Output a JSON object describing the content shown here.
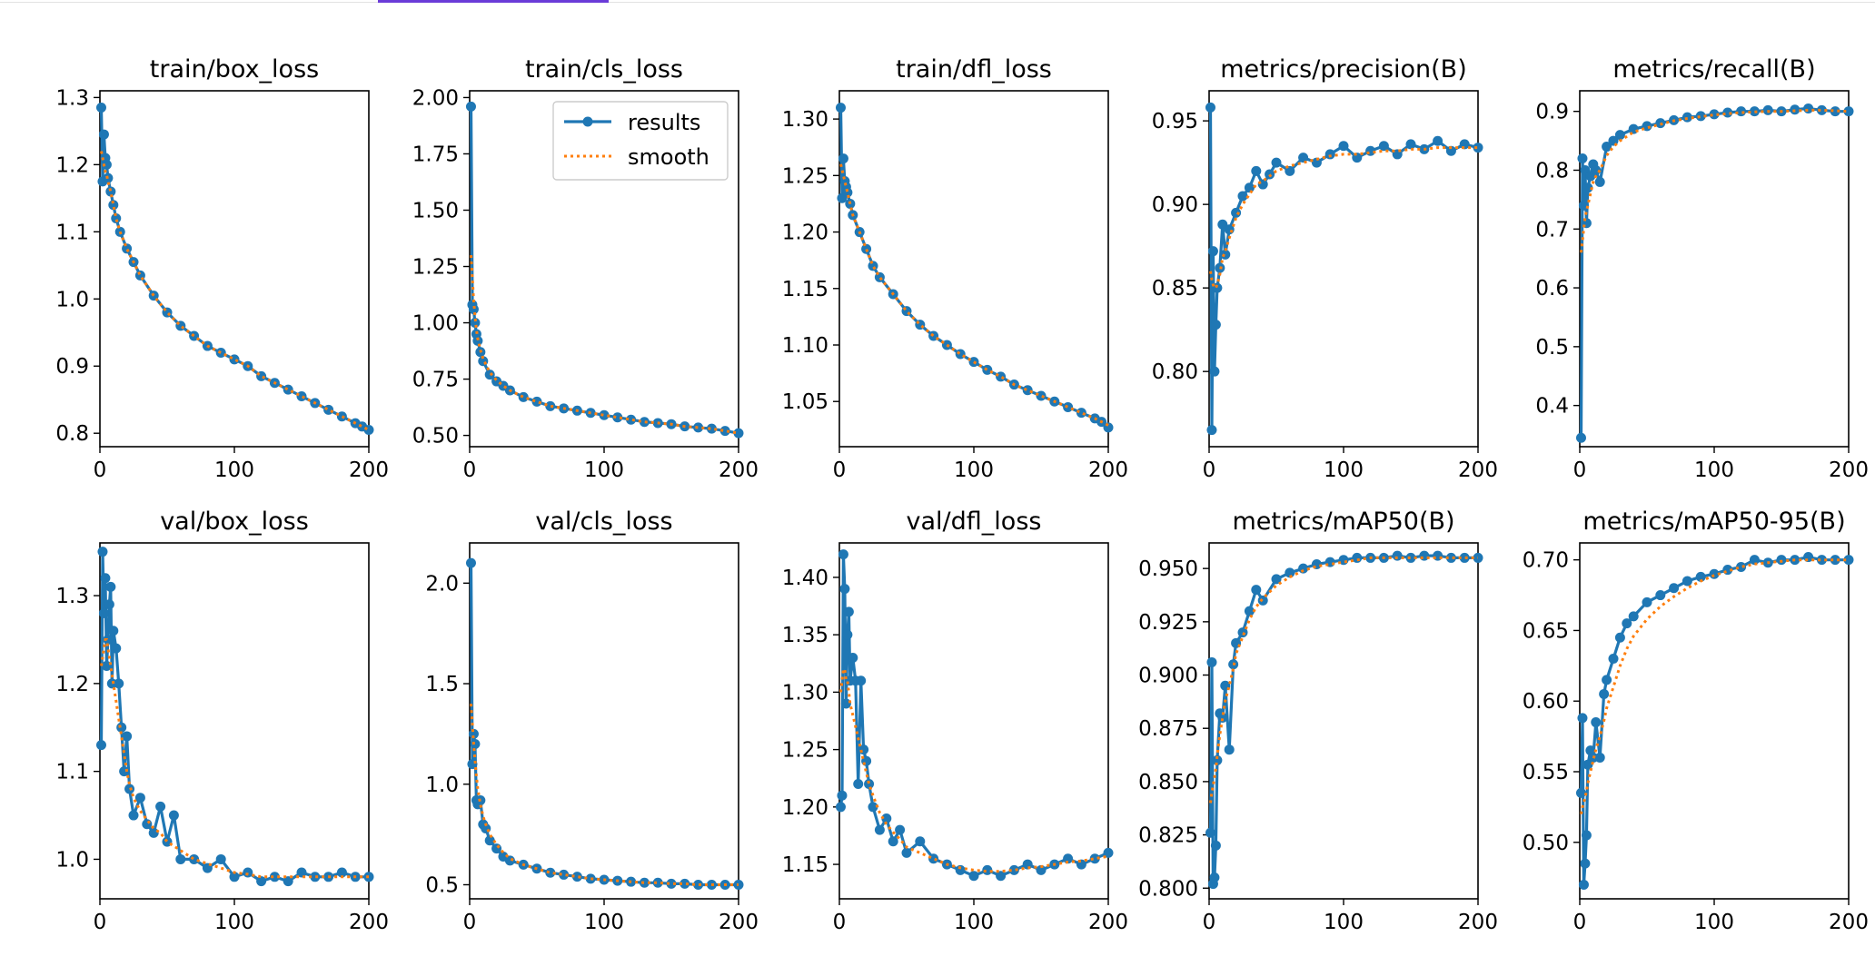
{
  "colors": {
    "results": "#1f77b4",
    "smooth": "#ff7f0e",
    "tab_accent": "#6a3bd8"
  },
  "legend": {
    "results_label": "results",
    "smooth_label": "smooth"
  },
  "chart_data": [
    {
      "type": "line",
      "title": "train/box_loss",
      "xlabel": "",
      "ylabel": "",
      "xlim": [
        0,
        200
      ],
      "ylim": [
        0.78,
        1.31
      ],
      "xticks": [
        0,
        100,
        200
      ],
      "yticks": [
        0.8,
        0.9,
        1.0,
        1.1,
        1.2,
        1.3
      ],
      "ytick_labels": [
        "0.8",
        "0.9",
        "1.0",
        "1.1",
        "1.2",
        "1.3"
      ],
      "grid": false,
      "legend": false,
      "x": [
        1,
        2,
        3,
        4,
        5,
        6,
        8,
        10,
        12,
        15,
        20,
        25,
        30,
        40,
        50,
        60,
        70,
        80,
        90,
        100,
        110,
        120,
        130,
        140,
        150,
        160,
        170,
        180,
        190,
        195,
        200
      ],
      "y": [
        1.285,
        1.175,
        1.245,
        1.21,
        1.2,
        1.18,
        1.16,
        1.14,
        1.12,
        1.1,
        1.075,
        1.055,
        1.035,
        1.005,
        0.98,
        0.96,
        0.945,
        0.93,
        0.92,
        0.91,
        0.9,
        0.885,
        0.875,
        0.865,
        0.855,
        0.845,
        0.835,
        0.825,
        0.815,
        0.81,
        0.805
      ],
      "smooth": [
        1.22,
        1.21,
        1.2,
        1.19,
        1.185,
        1.175,
        1.16,
        1.14,
        1.12,
        1.1,
        1.075,
        1.055,
        1.035,
        1.005,
        0.98,
        0.96,
        0.945,
        0.93,
        0.92,
        0.91,
        0.9,
        0.885,
        0.875,
        0.865,
        0.855,
        0.845,
        0.835,
        0.825,
        0.815,
        0.81,
        0.805
      ]
    },
    {
      "type": "line",
      "title": "train/cls_loss",
      "xlabel": "",
      "ylabel": "",
      "xlim": [
        0,
        200
      ],
      "ylim": [
        0.45,
        2.03
      ],
      "xticks": [
        0,
        100,
        200
      ],
      "yticks": [
        0.5,
        0.75,
        1.0,
        1.25,
        1.5,
        1.75,
        2.0
      ],
      "ytick_labels": [
        "0.50",
        "0.75",
        "1.00",
        "1.25",
        "1.50",
        "1.75",
        "2.00"
      ],
      "grid": false,
      "legend": true,
      "legend_loc": "upper right",
      "x": [
        1,
        2,
        3,
        4,
        5,
        6,
        8,
        10,
        15,
        20,
        25,
        30,
        40,
        50,
        60,
        70,
        80,
        90,
        100,
        110,
        120,
        130,
        140,
        150,
        160,
        170,
        180,
        190,
        200
      ],
      "y": [
        1.96,
        1.08,
        1.06,
        1.0,
        0.95,
        0.92,
        0.87,
        0.83,
        0.77,
        0.74,
        0.72,
        0.7,
        0.67,
        0.65,
        0.63,
        0.62,
        0.61,
        0.6,
        0.59,
        0.58,
        0.57,
        0.56,
        0.555,
        0.55,
        0.54,
        0.535,
        0.53,
        0.52,
        0.51
      ],
      "smooth": [
        1.3,
        1.2,
        1.1,
        1.03,
        0.97,
        0.93,
        0.88,
        0.84,
        0.78,
        0.745,
        0.72,
        0.7,
        0.67,
        0.65,
        0.63,
        0.62,
        0.61,
        0.6,
        0.59,
        0.58,
        0.57,
        0.56,
        0.555,
        0.55,
        0.54,
        0.535,
        0.53,
        0.52,
        0.51
      ]
    },
    {
      "type": "line",
      "title": "train/dfl_loss",
      "xlabel": "",
      "ylabel": "",
      "xlim": [
        0,
        200
      ],
      "ylim": [
        1.01,
        1.325
      ],
      "xticks": [
        0,
        100,
        200
      ],
      "yticks": [
        1.05,
        1.1,
        1.15,
        1.2,
        1.25,
        1.3
      ],
      "ytick_labels": [
        "1.05",
        "1.10",
        "1.15",
        "1.20",
        "1.25",
        "1.30"
      ],
      "grid": false,
      "legend": false,
      "x": [
        1,
        2,
        3,
        4,
        5,
        6,
        8,
        10,
        15,
        20,
        25,
        30,
        40,
        50,
        60,
        70,
        80,
        90,
        100,
        110,
        120,
        130,
        140,
        150,
        160,
        170,
        180,
        190,
        195,
        200
      ],
      "y": [
        1.31,
        1.23,
        1.265,
        1.245,
        1.24,
        1.235,
        1.225,
        1.215,
        1.2,
        1.185,
        1.17,
        1.16,
        1.145,
        1.13,
        1.118,
        1.108,
        1.1,
        1.092,
        1.085,
        1.078,
        1.072,
        1.065,
        1.06,
        1.055,
        1.05,
        1.045,
        1.04,
        1.035,
        1.032,
        1.027
      ],
      "smooth": [
        1.26,
        1.255,
        1.25,
        1.245,
        1.24,
        1.235,
        1.225,
        1.215,
        1.2,
        1.185,
        1.17,
        1.16,
        1.145,
        1.13,
        1.118,
        1.108,
        1.1,
        1.092,
        1.085,
        1.078,
        1.072,
        1.065,
        1.06,
        1.055,
        1.05,
        1.045,
        1.04,
        1.035,
        1.032,
        1.029
      ]
    },
    {
      "type": "line",
      "title": "metrics/precision(B)",
      "xlabel": "",
      "ylabel": "",
      "xlim": [
        0,
        200
      ],
      "ylim": [
        0.755,
        0.968
      ],
      "xticks": [
        0,
        100,
        200
      ],
      "yticks": [
        0.8,
        0.85,
        0.9,
        0.95
      ],
      "ytick_labels": [
        "0.80",
        "0.85",
        "0.90",
        "0.95"
      ],
      "grid": false,
      "legend": false,
      "x": [
        1,
        2,
        3,
        4,
        5,
        6,
        8,
        10,
        12,
        15,
        20,
        25,
        30,
        35,
        40,
        45,
        50,
        60,
        70,
        80,
        90,
        100,
        110,
        120,
        130,
        140,
        150,
        160,
        170,
        180,
        190,
        200
      ],
      "y": [
        0.958,
        0.765,
        0.872,
        0.8,
        0.828,
        0.85,
        0.862,
        0.888,
        0.87,
        0.885,
        0.895,
        0.905,
        0.91,
        0.92,
        0.912,
        0.918,
        0.925,
        0.92,
        0.928,
        0.925,
        0.93,
        0.935,
        0.928,
        0.932,
        0.935,
        0.93,
        0.936,
        0.933,
        0.938,
        0.932,
        0.936,
        0.934
      ],
      "smooth": [
        0.86,
        0.855,
        0.852,
        0.85,
        0.85,
        0.852,
        0.858,
        0.868,
        0.872,
        0.88,
        0.892,
        0.9,
        0.906,
        0.912,
        0.914,
        0.917,
        0.92,
        0.923,
        0.925,
        0.927,
        0.929,
        0.93,
        0.93,
        0.931,
        0.932,
        0.932,
        0.933,
        0.933,
        0.934,
        0.934,
        0.934,
        0.934
      ]
    },
    {
      "type": "line",
      "title": "metrics/recall(B)",
      "xlabel": "",
      "ylabel": "",
      "xlim": [
        0,
        200
      ],
      "ylim": [
        0.33,
        0.935
      ],
      "xticks": [
        0,
        100,
        200
      ],
      "yticks": [
        0.4,
        0.5,
        0.6,
        0.7,
        0.8,
        0.9
      ],
      "ytick_labels": [
        "0.4",
        "0.5",
        "0.6",
        "0.7",
        "0.8",
        "0.9"
      ],
      "grid": false,
      "legend": false,
      "x": [
        1,
        2,
        3,
        4,
        5,
        6,
        8,
        10,
        12,
        15,
        20,
        25,
        30,
        40,
        50,
        60,
        70,
        80,
        90,
        100,
        110,
        120,
        130,
        140,
        150,
        160,
        170,
        180,
        190,
        200
      ],
      "y": [
        0.345,
        0.82,
        0.74,
        0.8,
        0.71,
        0.77,
        0.79,
        0.81,
        0.8,
        0.78,
        0.84,
        0.85,
        0.86,
        0.87,
        0.875,
        0.88,
        0.885,
        0.89,
        0.892,
        0.895,
        0.898,
        0.9,
        0.9,
        0.902,
        0.9,
        0.903,
        0.905,
        0.902,
        0.9,
        0.9
      ],
      "smooth": [
        0.66,
        0.68,
        0.7,
        0.72,
        0.73,
        0.74,
        0.76,
        0.78,
        0.79,
        0.8,
        0.825,
        0.84,
        0.85,
        0.865,
        0.872,
        0.878,
        0.884,
        0.888,
        0.891,
        0.894,
        0.896,
        0.898,
        0.899,
        0.9,
        0.9,
        0.901,
        0.902,
        0.902,
        0.901,
        0.9
      ]
    },
    {
      "type": "line",
      "title": "val/box_loss",
      "xlabel": "",
      "ylabel": "",
      "xlim": [
        0,
        200
      ],
      "ylim": [
        0.955,
        1.36
      ],
      "xticks": [
        0,
        100,
        200
      ],
      "yticks": [
        1.0,
        1.1,
        1.2,
        1.3
      ],
      "ytick_labels": [
        "1.0",
        "1.1",
        "1.2",
        "1.3"
      ],
      "grid": false,
      "legend": false,
      "x": [
        1,
        2,
        3,
        4,
        5,
        6,
        7,
        8,
        9,
        10,
        12,
        14,
        16,
        18,
        20,
        22,
        25,
        30,
        35,
        40,
        45,
        50,
        55,
        60,
        70,
        80,
        90,
        100,
        110,
        120,
        130,
        140,
        150,
        160,
        170,
        180,
        190,
        200
      ],
      "y": [
        1.13,
        1.35,
        1.28,
        1.32,
        1.22,
        1.25,
        1.29,
        1.31,
        1.2,
        1.26,
        1.24,
        1.2,
        1.15,
        1.1,
        1.14,
        1.08,
        1.05,
        1.07,
        1.04,
        1.03,
        1.06,
        1.02,
        1.05,
        1.0,
        1.0,
        0.99,
        1.0,
        0.98,
        0.985,
        0.975,
        0.98,
        0.975,
        0.985,
        0.98,
        0.98,
        0.985,
        0.98,
        0.98
      ],
      "smooth": [
        1.22,
        1.23,
        1.24,
        1.25,
        1.25,
        1.24,
        1.23,
        1.22,
        1.21,
        1.2,
        1.18,
        1.16,
        1.14,
        1.12,
        1.1,
        1.085,
        1.07,
        1.055,
        1.045,
        1.035,
        1.03,
        1.02,
        1.015,
        1.01,
        1.0,
        0.995,
        0.99,
        0.985,
        0.983,
        0.98,
        0.98,
        0.98,
        0.98,
        0.98,
        0.98,
        0.98,
        0.98,
        0.98
      ]
    },
    {
      "type": "line",
      "title": "val/cls_loss",
      "xlabel": "",
      "ylabel": "",
      "xlim": [
        0,
        200
      ],
      "ylim": [
        0.43,
        2.2
      ],
      "xticks": [
        0,
        100,
        200
      ],
      "yticks": [
        0.5,
        1.0,
        1.5,
        2.0
      ],
      "ytick_labels": [
        "0.5",
        "1.0",
        "1.5",
        "2.0"
      ],
      "grid": false,
      "legend": false,
      "x": [
        1,
        2,
        3,
        4,
        5,
        6,
        8,
        10,
        12,
        15,
        20,
        25,
        30,
        40,
        50,
        60,
        70,
        80,
        90,
        100,
        110,
        120,
        130,
        140,
        150,
        160,
        170,
        180,
        190,
        200
      ],
      "y": [
        2.1,
        1.1,
        1.25,
        1.2,
        0.92,
        0.9,
        0.92,
        0.8,
        0.78,
        0.72,
        0.68,
        0.64,
        0.62,
        0.6,
        0.58,
        0.56,
        0.55,
        0.54,
        0.53,
        0.525,
        0.52,
        0.515,
        0.51,
        0.51,
        0.505,
        0.505,
        0.5,
        0.5,
        0.5,
        0.5
      ],
      "smooth": [
        1.4,
        1.3,
        1.2,
        1.12,
        1.04,
        0.98,
        0.9,
        0.84,
        0.8,
        0.75,
        0.7,
        0.66,
        0.63,
        0.6,
        0.58,
        0.56,
        0.55,
        0.54,
        0.53,
        0.525,
        0.52,
        0.515,
        0.51,
        0.51,
        0.505,
        0.505,
        0.5,
        0.5,
        0.5,
        0.5
      ]
    },
    {
      "type": "line",
      "title": "val/dfl_loss",
      "xlabel": "",
      "ylabel": "",
      "xlim": [
        0,
        200
      ],
      "ylim": [
        1.12,
        1.43
      ],
      "xticks": [
        0,
        100,
        200
      ],
      "yticks": [
        1.15,
        1.2,
        1.25,
        1.3,
        1.35,
        1.4
      ],
      "ytick_labels": [
        "1.15",
        "1.20",
        "1.25",
        "1.30",
        "1.35",
        "1.40"
      ],
      "grid": false,
      "legend": false,
      "x": [
        1,
        2,
        3,
        4,
        5,
        6,
        7,
        8,
        10,
        12,
        14,
        16,
        18,
        20,
        22,
        25,
        30,
        35,
        40,
        45,
        50,
        60,
        70,
        80,
        90,
        100,
        110,
        120,
        130,
        140,
        150,
        160,
        170,
        180,
        190,
        200
      ],
      "y": [
        1.2,
        1.21,
        1.42,
        1.39,
        1.29,
        1.35,
        1.37,
        1.31,
        1.33,
        1.31,
        1.22,
        1.31,
        1.25,
        1.24,
        1.22,
        1.2,
        1.18,
        1.19,
        1.17,
        1.18,
        1.16,
        1.17,
        1.155,
        1.15,
        1.145,
        1.14,
        1.145,
        1.14,
        1.145,
        1.15,
        1.145,
        1.15,
        1.155,
        1.15,
        1.155,
        1.16
      ],
      "smooth": [
        1.3,
        1.31,
        1.32,
        1.32,
        1.31,
        1.31,
        1.3,
        1.29,
        1.28,
        1.27,
        1.26,
        1.25,
        1.24,
        1.23,
        1.22,
        1.21,
        1.195,
        1.185,
        1.178,
        1.172,
        1.165,
        1.16,
        1.155,
        1.15,
        1.147,
        1.145,
        1.144,
        1.144,
        1.145,
        1.147,
        1.148,
        1.15,
        1.152,
        1.153,
        1.155,
        1.157
      ]
    },
    {
      "type": "line",
      "title": "metrics/mAP50(B)",
      "xlabel": "",
      "ylabel": "",
      "xlim": [
        0,
        200
      ],
      "ylim": [
        0.795,
        0.962
      ],
      "xticks": [
        0,
        100,
        200
      ],
      "yticks": [
        0.8,
        0.825,
        0.85,
        0.875,
        0.9,
        0.925,
        0.95
      ],
      "ytick_labels": [
        "0.800",
        "0.825",
        "0.850",
        "0.875",
        "0.900",
        "0.925",
        "0.950"
      ],
      "grid": false,
      "legend": false,
      "x": [
        1,
        2,
        3,
        4,
        5,
        6,
        8,
        10,
        12,
        15,
        18,
        20,
        25,
        30,
        35,
        40,
        50,
        60,
        70,
        80,
        90,
        100,
        110,
        120,
        130,
        140,
        150,
        160,
        170,
        180,
        190,
        200
      ],
      "y": [
        0.826,
        0.906,
        0.802,
        0.805,
        0.82,
        0.86,
        0.882,
        0.88,
        0.895,
        0.865,
        0.905,
        0.915,
        0.92,
        0.93,
        0.94,
        0.935,
        0.945,
        0.948,
        0.95,
        0.952,
        0.953,
        0.954,
        0.955,
        0.955,
        0.955,
        0.956,
        0.955,
        0.956,
        0.956,
        0.955,
        0.955,
        0.955
      ],
      "smooth": [
        0.84,
        0.845,
        0.848,
        0.852,
        0.856,
        0.862,
        0.872,
        0.88,
        0.888,
        0.895,
        0.903,
        0.91,
        0.918,
        0.926,
        0.932,
        0.936,
        0.942,
        0.946,
        0.949,
        0.951,
        0.952,
        0.953,
        0.954,
        0.955,
        0.955,
        0.955,
        0.955,
        0.955,
        0.955,
        0.955,
        0.955,
        0.955
      ]
    },
    {
      "type": "line",
      "title": "metrics/mAP50-95(B)",
      "xlabel": "",
      "ylabel": "",
      "xlim": [
        0,
        200
      ],
      "ylim": [
        0.46,
        0.712
      ],
      "xticks": [
        0,
        100,
        200
      ],
      "yticks": [
        0.5,
        0.55,
        0.6,
        0.65,
        0.7
      ],
      "ytick_labels": [
        "0.50",
        "0.55",
        "0.60",
        "0.65",
        "0.70"
      ],
      "grid": false,
      "legend": false,
      "x": [
        1,
        2,
        3,
        4,
        5,
        6,
        8,
        10,
        12,
        15,
        18,
        20,
        25,
        30,
        35,
        40,
        50,
        60,
        70,
        80,
        90,
        100,
        110,
        120,
        130,
        140,
        150,
        160,
        170,
        180,
        190,
        200
      ],
      "y": [
        0.535,
        0.588,
        0.47,
        0.485,
        0.505,
        0.555,
        0.565,
        0.56,
        0.585,
        0.56,
        0.605,
        0.615,
        0.63,
        0.645,
        0.655,
        0.66,
        0.67,
        0.675,
        0.68,
        0.685,
        0.688,
        0.69,
        0.693,
        0.695,
        0.7,
        0.698,
        0.7,
        0.7,
        0.702,
        0.7,
        0.7,
        0.7
      ],
      "smooth": [
        0.52,
        0.525,
        0.528,
        0.532,
        0.536,
        0.542,
        0.55,
        0.558,
        0.566,
        0.575,
        0.586,
        0.595,
        0.61,
        0.625,
        0.637,
        0.646,
        0.658,
        0.667,
        0.674,
        0.68,
        0.685,
        0.689,
        0.692,
        0.695,
        0.697,
        0.698,
        0.699,
        0.7,
        0.7,
        0.7,
        0.7,
        0.7
      ]
    }
  ]
}
